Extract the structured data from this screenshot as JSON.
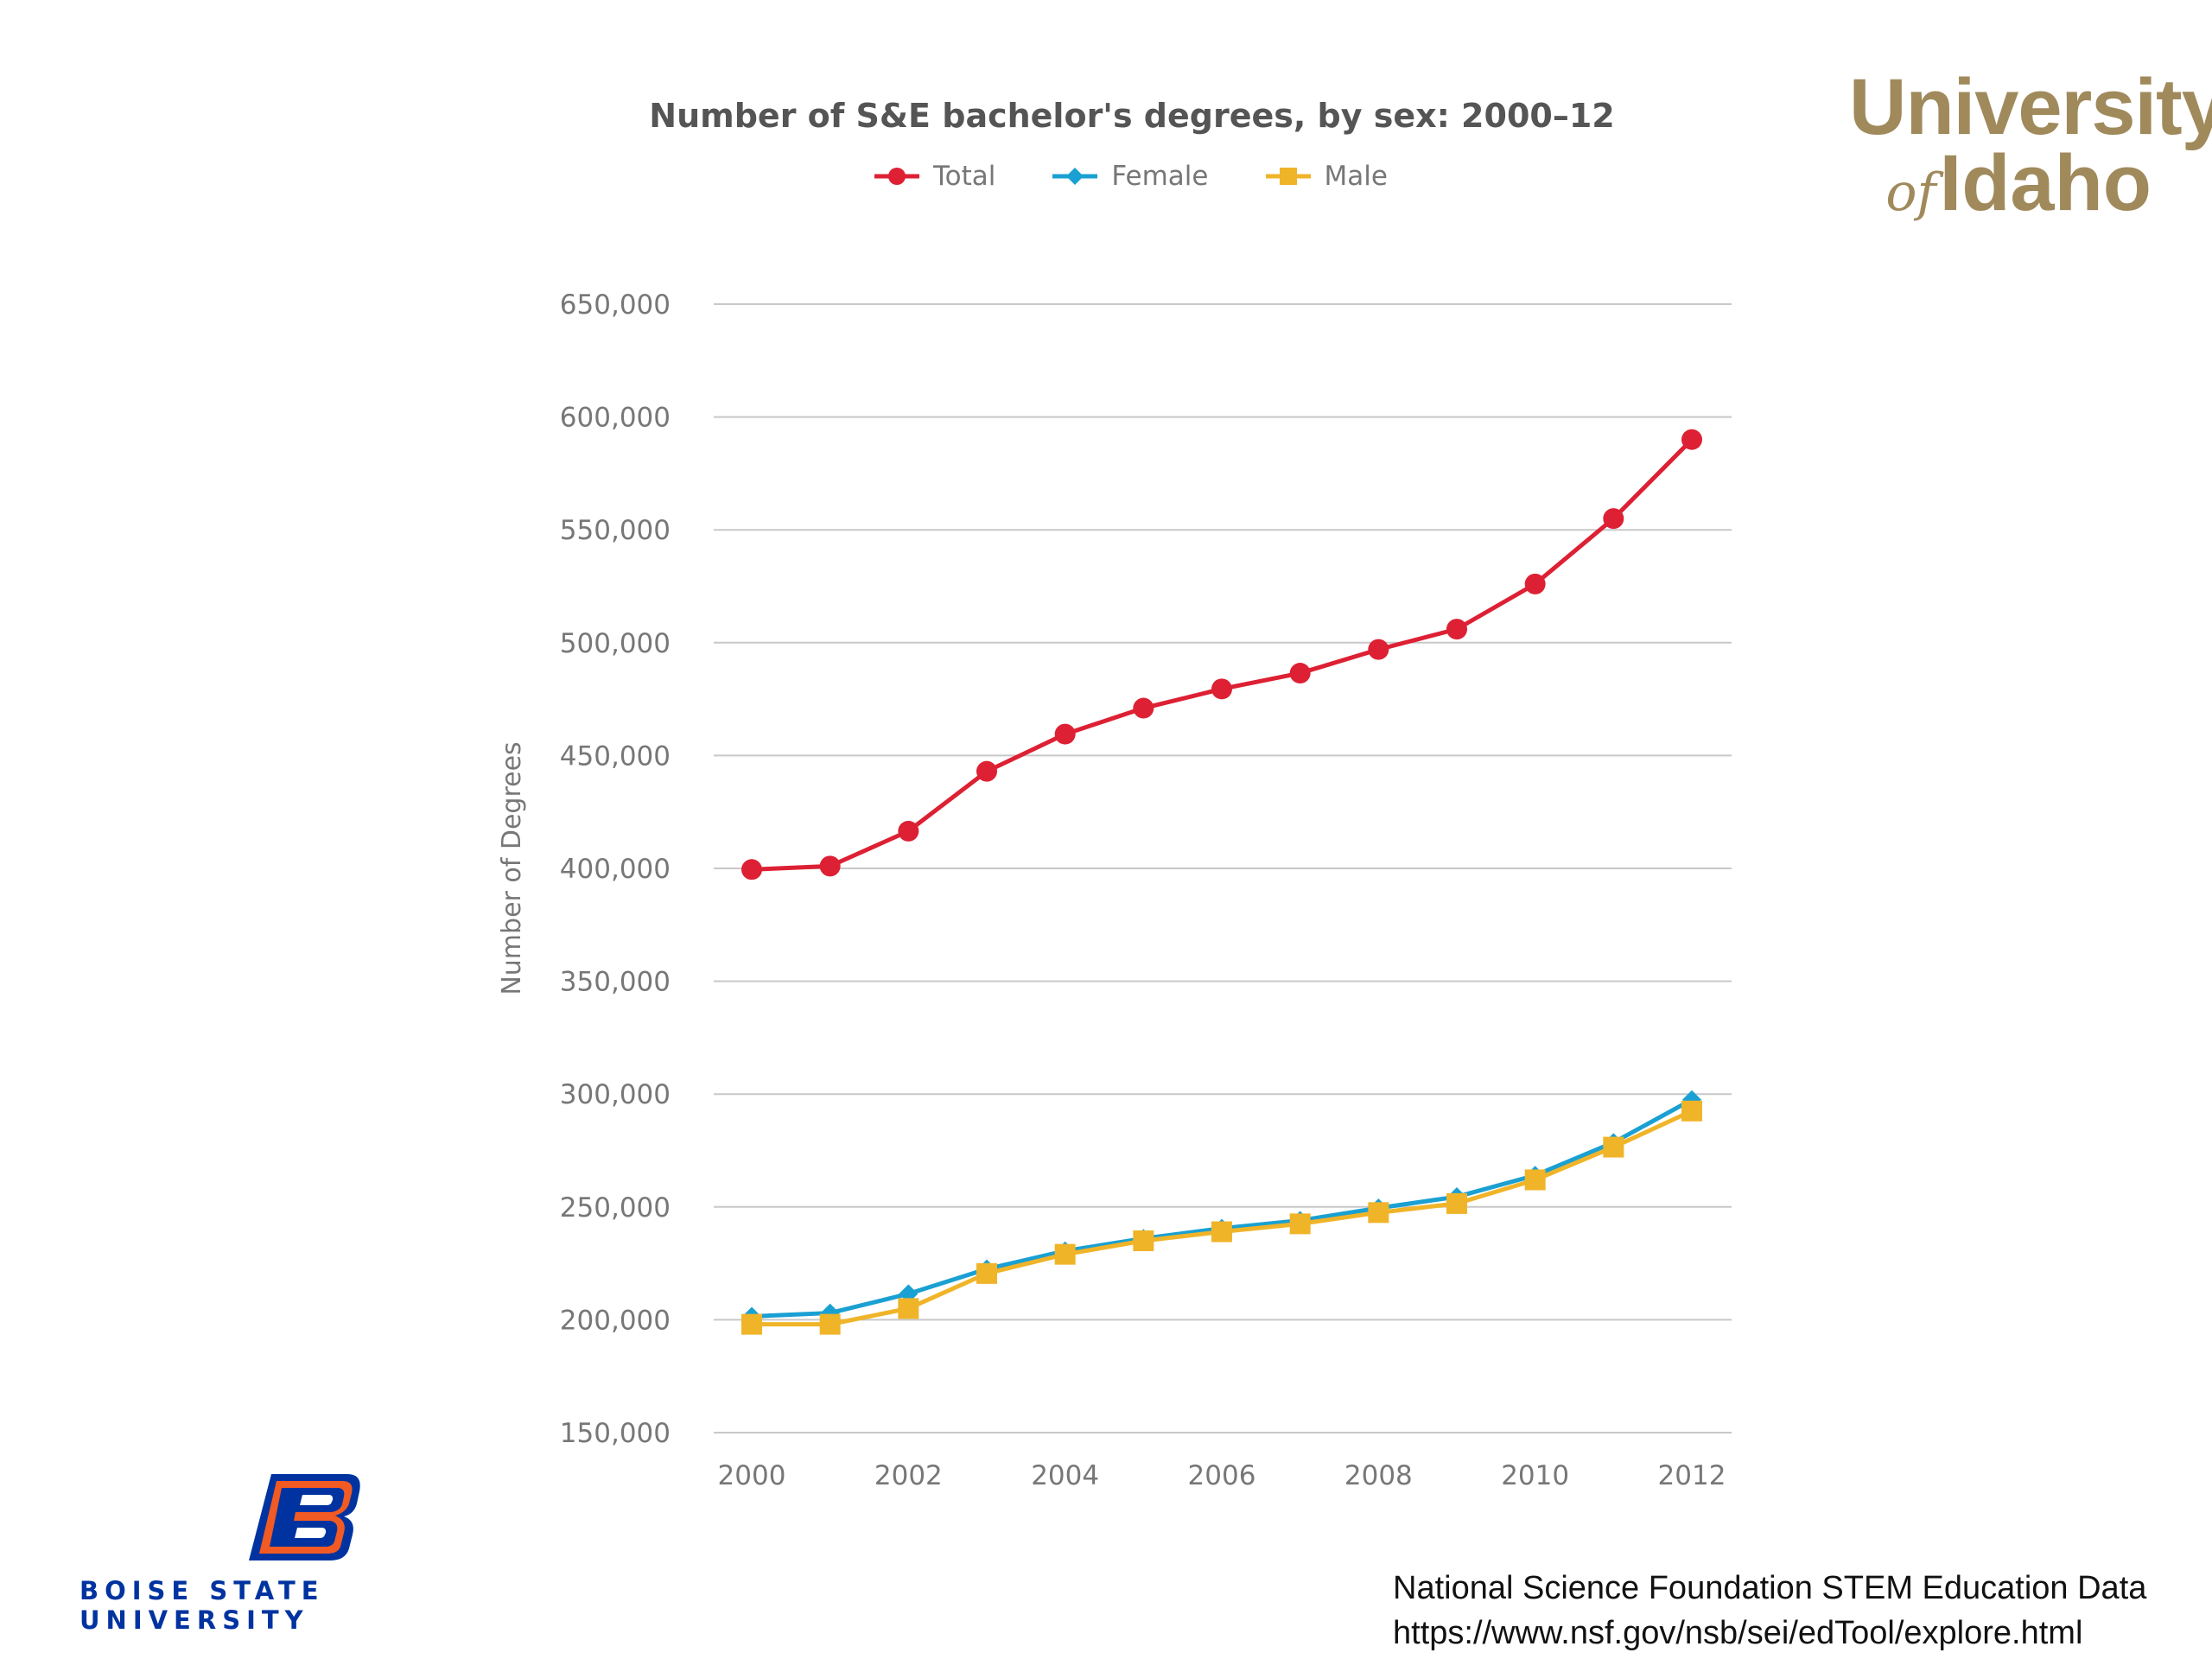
{
  "colors": {
    "total": "#dd2033",
    "female": "#1aa0d2",
    "male": "#f0b429",
    "grid": "#c8c8c8",
    "axis_text": "#777777"
  },
  "chart_data": {
    "type": "line",
    "title": "Number of S&E bachelor's degrees, by sex: 2000–12",
    "xlabel": "",
    "ylabel": "Number of Degrees",
    "x": [
      2000,
      2001,
      2002,
      2003,
      2004,
      2005,
      2006,
      2007,
      2008,
      2009,
      2010,
      2011,
      2012
    ],
    "x_ticks": [
      "2000",
      "2002",
      "2004",
      "2006",
      "2008",
      "2010",
      "2012"
    ],
    "y_ticks": [
      "150,000",
      "200,000",
      "250,000",
      "300,000",
      "350,000",
      "400,000",
      "450,000",
      "500,000",
      "550,000",
      "600,000",
      "650,000"
    ],
    "ylim": [
      150000,
      650000
    ],
    "grid": true,
    "legend_position": "top",
    "series": [
      {
        "name": "Total",
        "marker": "circle",
        "values": [
          399500,
          401000,
          416500,
          443000,
          459500,
          471000,
          479500,
          486500,
          497000,
          506000,
          526000,
          555000,
          590000
        ]
      },
      {
        "name": "Female",
        "marker": "diamond",
        "values": [
          201500,
          203000,
          211500,
          222500,
          230500,
          236000,
          240500,
          244000,
          249500,
          254500,
          264000,
          278500,
          297500
        ]
      },
      {
        "name": "Male",
        "marker": "square",
        "values": [
          198000,
          198000,
          205000,
          220500,
          229000,
          235000,
          239000,
          242500,
          247500,
          251500,
          262000,
          276500,
          292500
        ]
      }
    ]
  },
  "logos": {
    "uidaho_line1": "University",
    "uidaho_of": "of",
    "uidaho_line2": "Idaho",
    "boise_name": "BOISE STATE UNIVERSITY"
  },
  "source": {
    "line1": "National Science Foundation STEM Education Data",
    "line2": "https://www.nsf.gov/nsb/sei/edTool/explore.html"
  }
}
